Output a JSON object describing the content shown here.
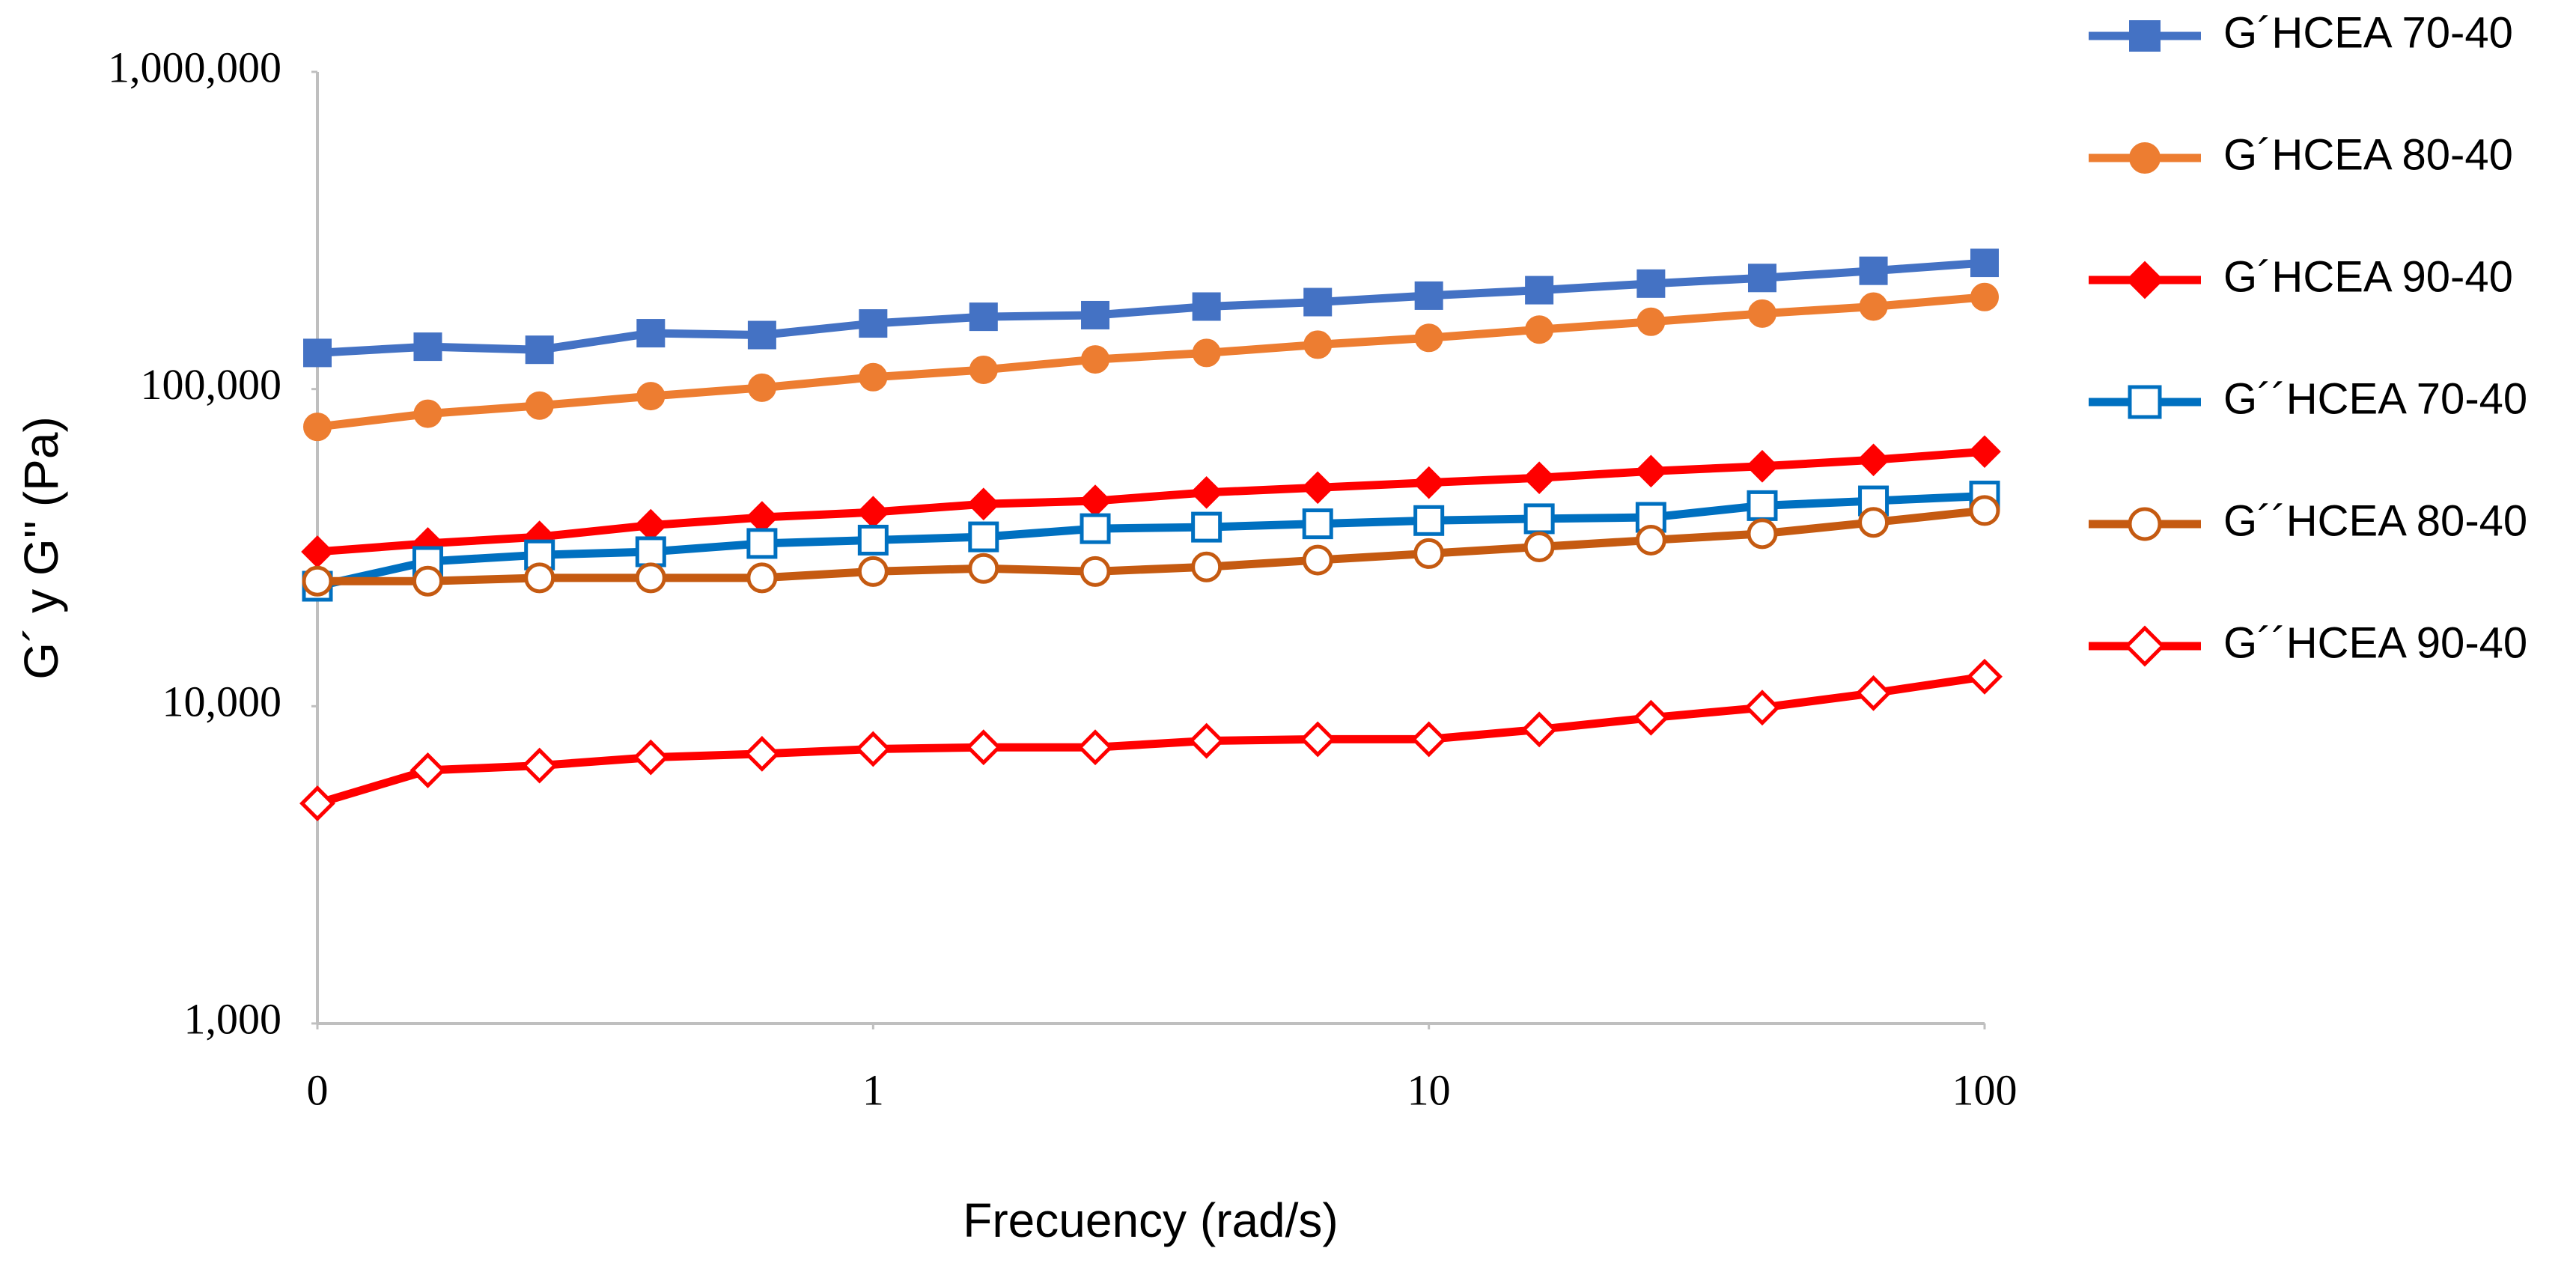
{
  "chart_data": {
    "type": "line",
    "x_label": "Frecuency (rad/s)",
    "y_label": "G´ y G'' (Pa)",
    "x_log": true,
    "y_log": true,
    "grid": false,
    "legend": "right",
    "xlim": [
      0.1,
      100
    ],
    "xticks": [
      {
        "value": 0.1,
        "label": "0"
      },
      1,
      10,
      100
    ],
    "ylim": [
      1000,
      1000000
    ],
    "yticks": [
      {
        "value": 1000,
        "label": "1,000"
      },
      {
        "value": 10000,
        "label": "10,000"
      },
      {
        "value": 100000,
        "label": "100,000"
      },
      {
        "value": 1000000,
        "label": "1,000,000"
      }
    ],
    "x": [
      0.1,
      0.158,
      0.251,
      0.398,
      0.631,
      1,
      1.58,
      2.51,
      3.98,
      6.31,
      10,
      15.8,
      25.1,
      39.8,
      63.1,
      100
    ],
    "series": [
      {
        "name": "G´HCEA 70-40",
        "color": "#4472c4",
        "marker": "square",
        "filled": true,
        "values": [
          130000,
          136000,
          133000,
          150000,
          148000,
          161000,
          169000,
          171000,
          182000,
          188000,
          197000,
          205000,
          215000,
          224000,
          236000,
          250000
        ]
      },
      {
        "name": "G´HCEA 80-40",
        "color": "#ed7d31",
        "marker": "circle",
        "filled": true,
        "values": [
          76000,
          83600,
          88700,
          95000,
          101000,
          109000,
          115000,
          124000,
          130000,
          138000,
          145000,
          154000,
          163000,
          173000,
          182000,
          195000
        ]
      },
      {
        "name": "G´HCEA 90-40",
        "color": "#ff0000",
        "marker": "diamond",
        "filled": true,
        "values": [
          30700,
          32600,
          34200,
          37200,
          39400,
          40900,
          43400,
          44400,
          47200,
          48900,
          50700,
          52500,
          55100,
          57100,
          59800,
          63500
        ]
      },
      {
        "name": "G´´HCEA 70-40",
        "color": "#0070c0",
        "marker": "square",
        "filled": false,
        "values": [
          23900,
          28600,
          30000,
          30700,
          32600,
          33400,
          34200,
          36300,
          36700,
          37600,
          38500,
          39000,
          39400,
          42900,
          44400,
          46000
        ]
      },
      {
        "name": "G´´HCEA 80-40",
        "color": "#c55a11",
        "marker": "circle",
        "filled": false,
        "values": [
          24800,
          24800,
          25400,
          25400,
          25400,
          26600,
          27200,
          26600,
          27500,
          28900,
          30300,
          31800,
          33400,
          35000,
          38000,
          41400
        ]
      },
      {
        "name": "G´´HCEA 90-40",
        "color": "#ff0000",
        "marker": "diamond",
        "filled": false,
        "values": [
          4940,
          6280,
          6500,
          6900,
          7080,
          7330,
          7420,
          7420,
          7780,
          7870,
          7870,
          8450,
          9200,
          9900,
          11000,
          12400
        ]
      }
    ]
  }
}
